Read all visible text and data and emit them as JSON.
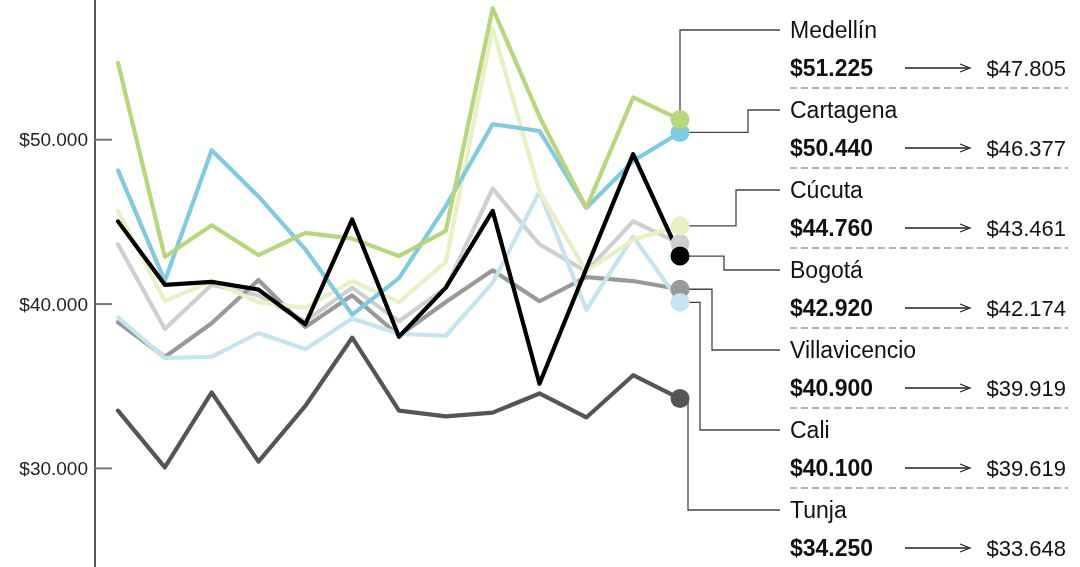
{
  "chart_data": {
    "type": "line",
    "categories": [
      null,
      null,
      null,
      null,
      null,
      null,
      null,
      null,
      null,
      null,
      null,
      null,
      null
    ],
    "ylim": [
      24000,
      58500
    ],
    "yticks": [
      {
        "value": 30000,
        "label": "$30.000"
      },
      {
        "value": 40000,
        "label": "$40.000"
      },
      {
        "value": 50000,
        "label": "$50.000"
      }
    ],
    "tick_labels": "y",
    "grid": false,
    "legend": false,
    "marker": "none",
    "line_style": "solid",
    "series": [
      {
        "color": "#cfcfcf",
        "values": [
          43630,
          38480,
          41170,
          40530,
          38950,
          41000,
          38950,
          41000,
          47020,
          43630,
          41990,
          45030,
          43680
        ],
        "value_labels": [
          null,
          null,
          null,
          null,
          null,
          null,
          null,
          null,
          null,
          null,
          null,
          null,
          null
        ]
      },
      {
        "name": "Villavicencio",
        "color": "#999999",
        "values": [
          38890,
          36780,
          38830,
          41460,
          38600,
          40530,
          38070,
          40120,
          42050,
          40170,
          41640,
          41400,
          40900
        ],
        "value_labels": [
          null,
          null,
          null,
          null,
          null,
          null,
          null,
          null,
          null,
          null,
          null,
          null,
          "$40.900"
        ]
      },
      {
        "name": "Cali",
        "color": "#c4e4f0",
        "values": [
          39180,
          36730,
          36780,
          38240,
          37250,
          39120,
          38190,
          38070,
          41290,
          46840,
          39650,
          44100,
          40100
        ],
        "value_labels": [
          null,
          null,
          null,
          null,
          null,
          null,
          null,
          null,
          null,
          null,
          null,
          null,
          "$40.100"
        ]
      },
      {
        "name": "Tunja",
        "color": "#555555",
        "values": [
          33510,
          30060,
          34620,
          30410,
          33800,
          37950,
          33510,
          33160,
          33390,
          34560,
          33100,
          35670,
          34250
        ],
        "value_labels": [
          null,
          null,
          null,
          null,
          null,
          null,
          null,
          null,
          null,
          null,
          null,
          null,
          "$34.250"
        ]
      },
      {
        "name": "Cúcuta",
        "color": "#e9f0c2",
        "values": [
          45670,
          40180,
          41400,
          40120,
          39770,
          41400,
          40120,
          42570,
          56780,
          46840,
          41990,
          43920,
          44760
        ],
        "value_labels": [
          null,
          null,
          null,
          null,
          null,
          null,
          null,
          null,
          null,
          null,
          null,
          null,
          "$44.760"
        ]
      },
      {
        "name": "Cartagena",
        "color": "#7fcbe3",
        "values": [
          48130,
          41400,
          49360,
          46550,
          43330,
          39360,
          41580,
          45960,
          50940,
          50530,
          45850,
          48710,
          50440
        ],
        "value_labels": [
          null,
          null,
          null,
          null,
          null,
          null,
          null,
          null,
          null,
          null,
          null,
          null,
          "$50.440"
        ]
      },
      {
        "name": "Medellín",
        "color": "#b8d77a",
        "values": [
          54680,
          42870,
          44800,
          42980,
          44330,
          43980,
          42920,
          44450,
          58000,
          51400,
          45850,
          52570,
          51225
        ],
        "value_labels": [
          null,
          null,
          null,
          null,
          null,
          null,
          null,
          null,
          null,
          null,
          null,
          null,
          "$51.225"
        ]
      },
      {
        "name": "Bogotá",
        "color": "#000000",
        "values": [
          45030,
          41170,
          41350,
          40880,
          38770,
          45150,
          38010,
          41000,
          45670,
          35150,
          42160,
          49120,
          42920
        ],
        "value_labels": [
          null,
          null,
          null,
          null,
          null,
          null,
          null,
          null,
          null,
          null,
          null,
          null,
          "$42.920"
        ]
      }
    ],
    "annotations": [
      "$47.805",
      "$46.377",
      "$43.461",
      "$42.174",
      "$39.919",
      "$39.619",
      "$33.648"
    ]
  }
}
